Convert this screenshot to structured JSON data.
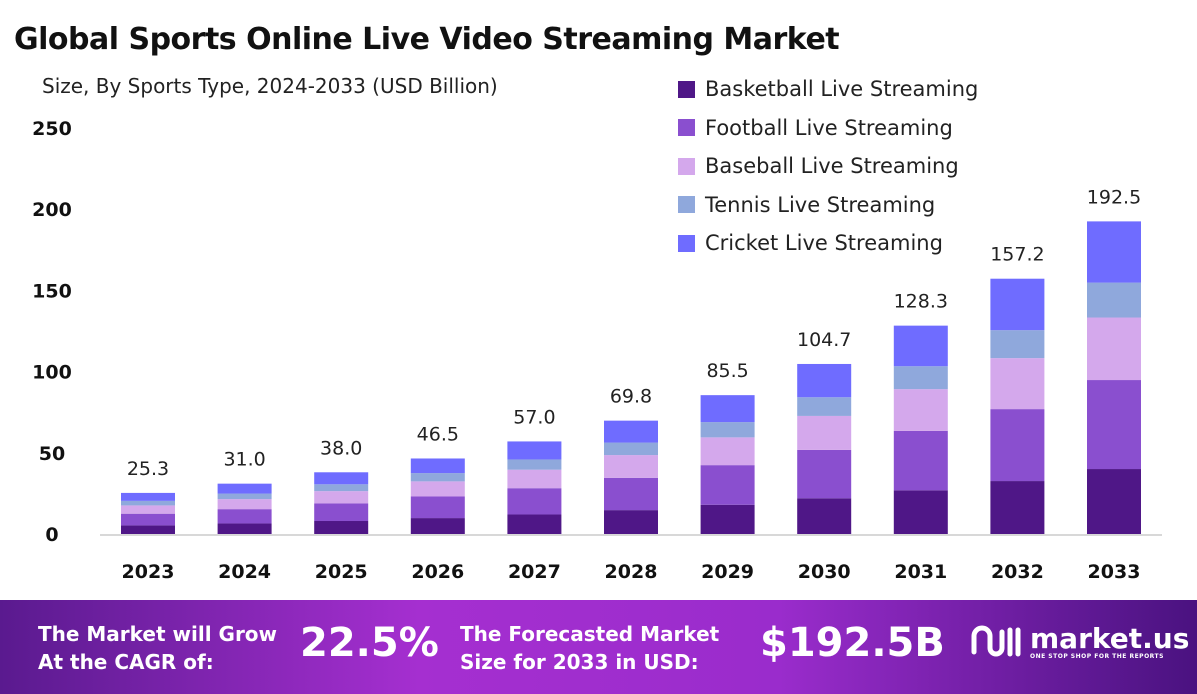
{
  "chart_data": {
    "type": "bar",
    "stacked": true,
    "title": "Global Sports Online Live Video Streaming Market",
    "subtitle": "Size, By Sports Type, 2024-2033 (USD Billion)",
    "categories": [
      "2023",
      "2024",
      "2025",
      "2026",
      "2027",
      "2028",
      "2029",
      "2030",
      "2031",
      "2032",
      "2033"
    ],
    "totals": [
      "25.3",
      "31.0",
      "38.0",
      "46.5",
      "57.0",
      "69.8",
      "85.5",
      "104.7",
      "128.3",
      "157.2",
      "192.5"
    ],
    "yticks": [
      "0",
      "50",
      "100",
      "150",
      "200",
      "250"
    ],
    "ylim": [
      0,
      250
    ],
    "legend_position": "top-right",
    "series": [
      {
        "name": "Basketball Live Streaming",
        "color": "#4f1787",
        "values": [
          5.3,
          6.5,
          8.0,
          9.8,
          12.0,
          14.7,
          18.0,
          22.0,
          26.9,
          32.6,
          40.0
        ]
      },
      {
        "name": "Football Live Streaming",
        "color": "#8a4fcf",
        "values": [
          7.2,
          8.8,
          10.8,
          13.3,
          16.2,
          19.9,
          24.4,
          29.8,
          36.6,
          44.3,
          54.8
        ]
      },
      {
        "name": "Baseball Live Streaming",
        "color": "#d4a8ec",
        "values": [
          5.1,
          6.2,
          7.6,
          9.3,
          11.4,
          14.0,
          17.1,
          20.9,
          25.7,
          31.4,
          38.5
        ]
      },
      {
        "name": "Tennis Live Streaming",
        "color": "#8fa8dc",
        "values": [
          2.8,
          3.4,
          4.2,
          5.1,
          6.3,
          7.7,
          9.4,
          11.5,
          14.1,
          17.2,
          21.5
        ]
      },
      {
        "name": "Cricket Live Streaming",
        "color": "#6f6cff",
        "values": [
          4.9,
          6.1,
          7.4,
          9.0,
          11.1,
          13.5,
          16.6,
          20.5,
          25.0,
          31.7,
          37.7
        ]
      }
    ]
  },
  "footer": {
    "cagr_label_1": "The Market will Grow",
    "cagr_label_2": "At the CAGR of:",
    "cagr_value": "22.5%",
    "forecast_label_1": "The Forecasted Market",
    "forecast_label_2": "Size for 2033 in USD:",
    "forecast_value": "$192.5B",
    "logo_text": "market.us",
    "logo_tagline": "ONE STOP SHOP FOR THE REPORTS"
  }
}
